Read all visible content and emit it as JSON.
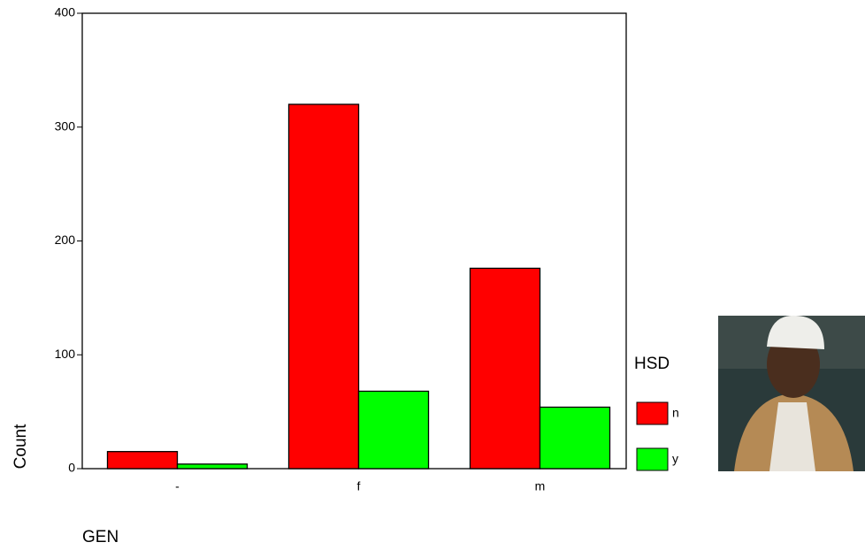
{
  "chart_data": {
    "type": "bar",
    "categories": [
      "-",
      "f",
      "m"
    ],
    "series": [
      {
        "name": "n",
        "color": "#ff0000",
        "values": [
          15,
          320,
          176
        ]
      },
      {
        "name": "y",
        "color": "#00ff00",
        "values": [
          4,
          68,
          54
        ]
      }
    ],
    "ylim": [
      0,
      400
    ],
    "yticks": [
      0,
      100,
      200,
      300,
      400
    ],
    "ylabel": "Count",
    "xlabel": "GEN",
    "legend_title": "HSD",
    "legend_position": "right"
  }
}
